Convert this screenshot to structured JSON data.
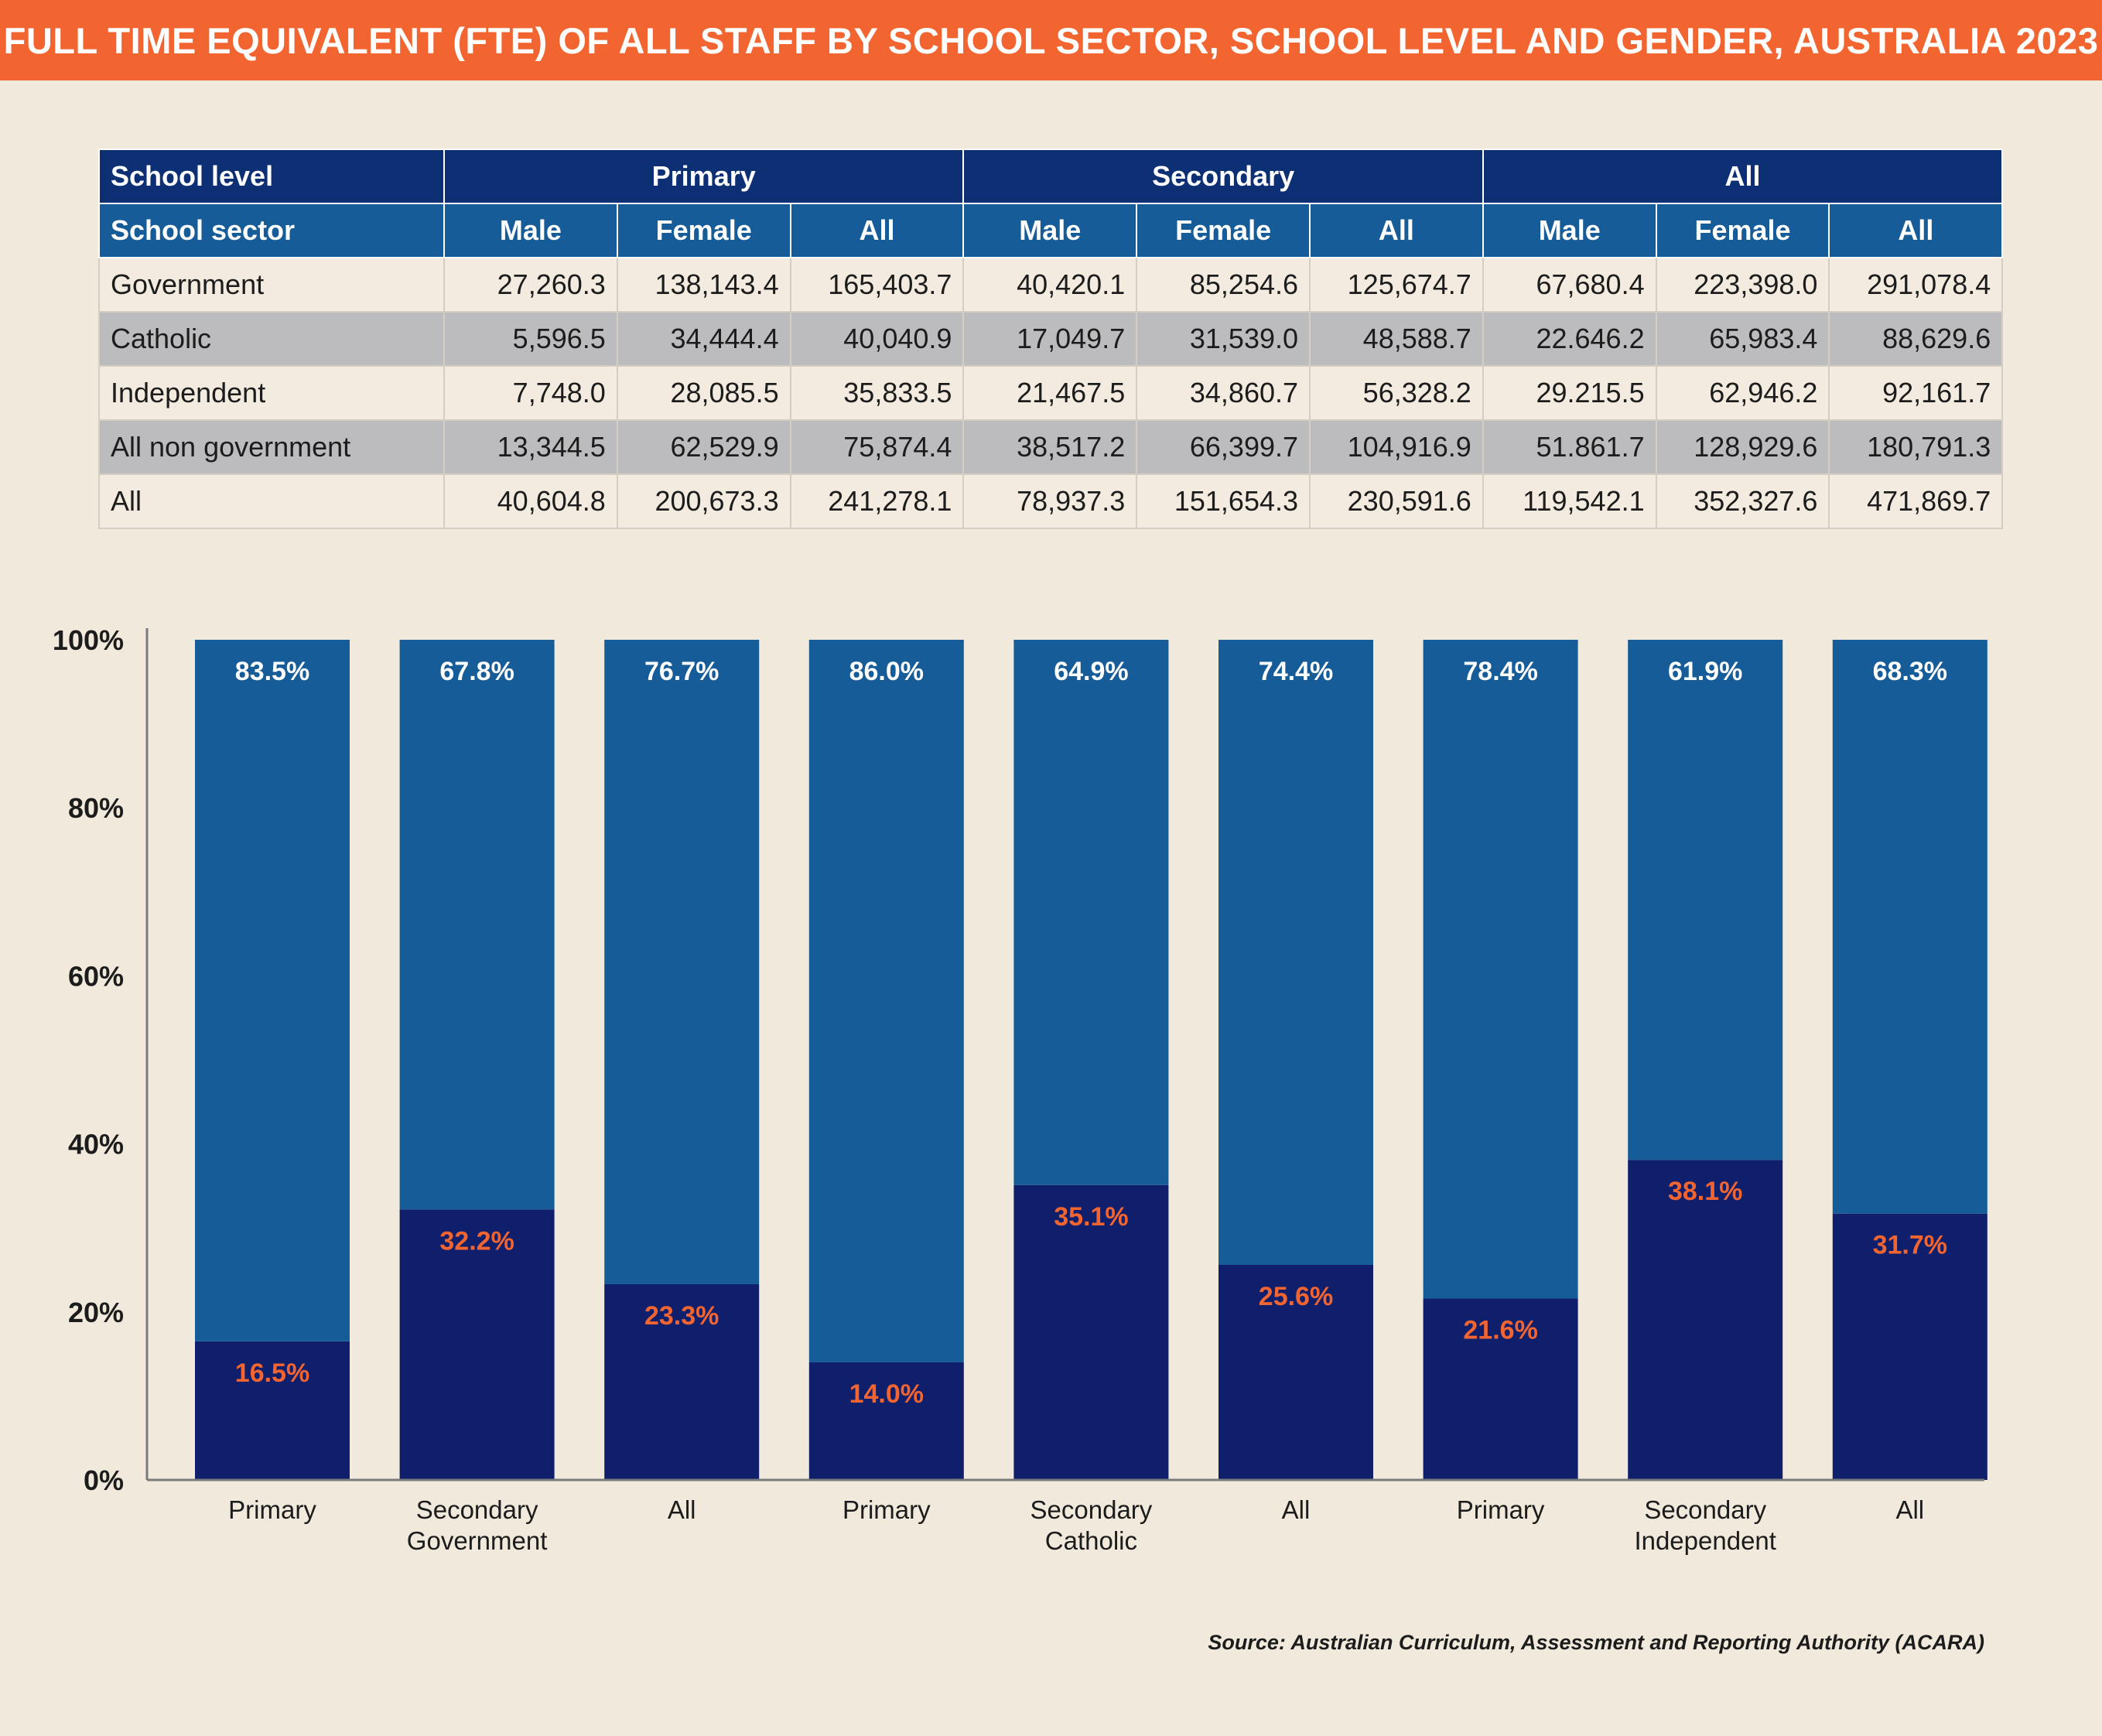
{
  "title": "FULL TIME EQUIVALENT (FTE) OF ALL STAFF BY SCHOOL SECTOR, SCHOOL LEVEL AND GENDER, AUSTRALIA 2023",
  "table": {
    "row1_label": "School level",
    "groups": [
      "Primary",
      "Secondary",
      "All"
    ],
    "row2_label": "School sector",
    "subheaders": [
      "Male",
      "Female",
      "All",
      "Male",
      "Female",
      "All",
      "Male",
      "Female",
      "All"
    ],
    "rows": [
      {
        "label": "Government",
        "values": [
          "27,260.3",
          "138,143.4",
          "165,403.7",
          "40,420.1",
          "85,254.6",
          "125,674.7",
          "67,680.4",
          "223,398.0",
          "291,078.4"
        ]
      },
      {
        "label": "Catholic",
        "values": [
          "5,596.5",
          "34,444.4",
          "40,040.9",
          "17,049.7",
          "31,539.0",
          "48,588.7",
          "22.646.2",
          "65,983.4",
          "88,629.6"
        ]
      },
      {
        "label": "Independent",
        "values": [
          "7,748.0",
          "28,085.5",
          "35,833.5",
          "21,467.5",
          "34,860.7",
          "56,328.2",
          "29.215.5",
          "62,946.2",
          "92,161.7"
        ]
      },
      {
        "label": "All non government",
        "values": [
          "13,344.5",
          "62,529.9",
          "75,874.4",
          "38,517.2",
          "66,399.7",
          "104,916.9",
          "51.861.7",
          "128,929.6",
          "180,791.3"
        ]
      },
      {
        "label": "All",
        "values": [
          "40,604.8",
          "200,673.3",
          "241,278.1",
          "78,937.3",
          "151,654.3",
          "230,591.6",
          "119,542.1",
          "352,327.6",
          "471,869.7"
        ]
      }
    ]
  },
  "chart_data": {
    "type": "bar",
    "stacked": true,
    "percent": true,
    "categories": [
      "Primary",
      "Secondary",
      "All",
      "Primary",
      "Secondary",
      "All",
      "Primary",
      "Secondary",
      "All"
    ],
    "groups": [
      {
        "label": "Government",
        "category_indices": [
          0,
          1,
          2
        ]
      },
      {
        "label": "Catholic",
        "category_indices": [
          3,
          4,
          5
        ]
      },
      {
        "label": "Independent",
        "category_indices": [
          6,
          7,
          8
        ]
      }
    ],
    "series": [
      {
        "values": [
          16.5,
          32.2,
          23.3,
          14.0,
          35.1,
          25.6,
          21.6,
          38.1,
          31.7
        ],
        "labels": [
          "16.5%",
          "32.2%",
          "23.3%",
          "14.0%",
          "35.1%",
          "25.6%",
          "21.6%",
          "38.1%",
          "31.7%"
        ],
        "color": "#0f1f6c",
        "label_color": "#f26531"
      },
      {
        "values": [
          83.5,
          67.8,
          76.7,
          86.0,
          64.9,
          74.4,
          78.4,
          61.9,
          68.3
        ],
        "labels": [
          "83.5%",
          "67.8%",
          "76.7%",
          "86.0%",
          "64.9%",
          "74.4%",
          "78.4%",
          "61.9%",
          "68.3%"
        ],
        "color": "#165c98",
        "label_color": "#ffffff"
      }
    ],
    "y_ticks": [
      "0%",
      "20%",
      "40%",
      "60%",
      "80%",
      "100%"
    ],
    "ylim": [
      0,
      100
    ],
    "axis_color": "#7a7a7a"
  },
  "source": "Source: Australian Curriculum, Assessment and Reporting Authority (ACARA)"
}
